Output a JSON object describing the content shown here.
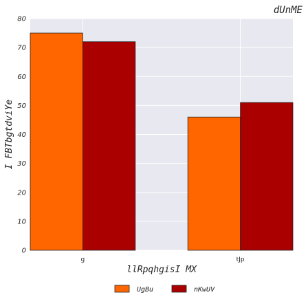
{
  "chart_data": {
    "type": "bar",
    "title": "dUnME",
    "xlabel": "llRpqhgisI MX",
    "ylabel": "I FBTbgtdviYe",
    "categories": [
      "g",
      "tJp"
    ],
    "series": [
      {
        "name": "UgBu",
        "values": [
          75,
          46
        ],
        "color": "#ff6600"
      },
      {
        "name": "nKwUV",
        "values": [
          72,
          51
        ],
        "color": "#aa0000"
      }
    ],
    "ylim": [
      0,
      80
    ],
    "yticks": [
      0,
      10,
      20,
      30,
      40,
      50,
      60,
      70,
      80
    ],
    "grid": true,
    "legend_position": "bottom-center",
    "background": "#e8e8f0",
    "grid_color": "#ffffff"
  }
}
